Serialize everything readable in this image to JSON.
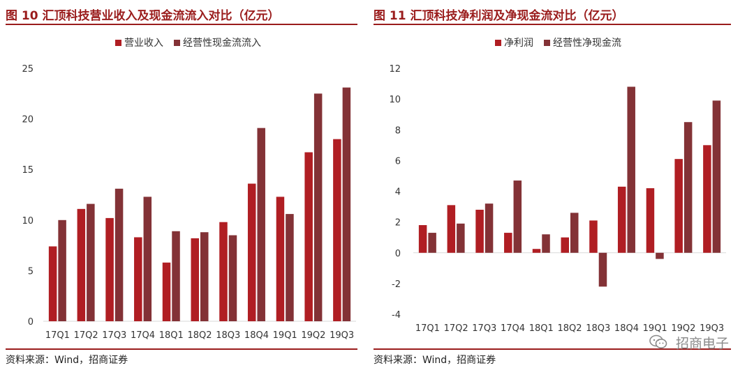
{
  "colors": {
    "revenue": "#b01e23",
    "cashflow": "#833236",
    "accent": "#9a1c1c",
    "axis": "#d9d9d9"
  },
  "watermark": {
    "text": "招商电子",
    "icon": "wechat-icon"
  },
  "figures": [
    {
      "title": "图 10  汇顶科技营业收入及现金流流入对比（亿元）",
      "source": "资料来源：Wind，招商证券",
      "chart_data": {
        "type": "bar",
        "categories": [
          "17Q1",
          "17Q2",
          "17Q3",
          "17Q4",
          "18Q1",
          "18Q2",
          "18Q3",
          "18Q4",
          "19Q1",
          "19Q2",
          "19Q3"
        ],
        "series": [
          {
            "name": "营业收入",
            "values": [
              7.4,
              11.1,
              10.2,
              8.3,
              5.8,
              8.2,
              9.8,
              13.6,
              12.3,
              16.7,
              18.0
            ]
          },
          {
            "name": "经营性现金流流入",
            "values": [
              10.0,
              11.6,
              13.1,
              12.3,
              8.9,
              8.8,
              8.5,
              19.1,
              10.6,
              22.5,
              23.1
            ]
          }
        ],
        "yticks": [
          "0",
          "5",
          "10",
          "15",
          "20",
          "25"
        ],
        "ylim": [
          0,
          25
        ],
        "legend": "top-center"
      }
    },
    {
      "title": "图 11  汇顶科技净利润及净现金流对比（亿元）",
      "source": "资料来源：Wind，招商证券",
      "chart_data": {
        "type": "bar",
        "categories": [
          "17Q1",
          "17Q2",
          "17Q3",
          "17Q4",
          "18Q1",
          "18Q2",
          "18Q3",
          "18Q4",
          "19Q1",
          "19Q2",
          "19Q3"
        ],
        "series": [
          {
            "name": "净利润",
            "values": [
              1.8,
              3.1,
              2.8,
              1.3,
              0.25,
              1.0,
              2.1,
              4.3,
              4.2,
              6.1,
              7.0
            ]
          },
          {
            "name": "经营性净现金流",
            "values": [
              1.3,
              1.9,
              3.2,
              4.7,
              1.2,
              2.6,
              -2.2,
              10.8,
              -0.4,
              8.5,
              9.9
            ]
          }
        ],
        "yticks": [
          "-4",
          "-2",
          "0",
          "2",
          "4",
          "6",
          "8",
          "10",
          "12"
        ],
        "ylim": [
          -4,
          12
        ],
        "legend": "top-center"
      }
    }
  ]
}
